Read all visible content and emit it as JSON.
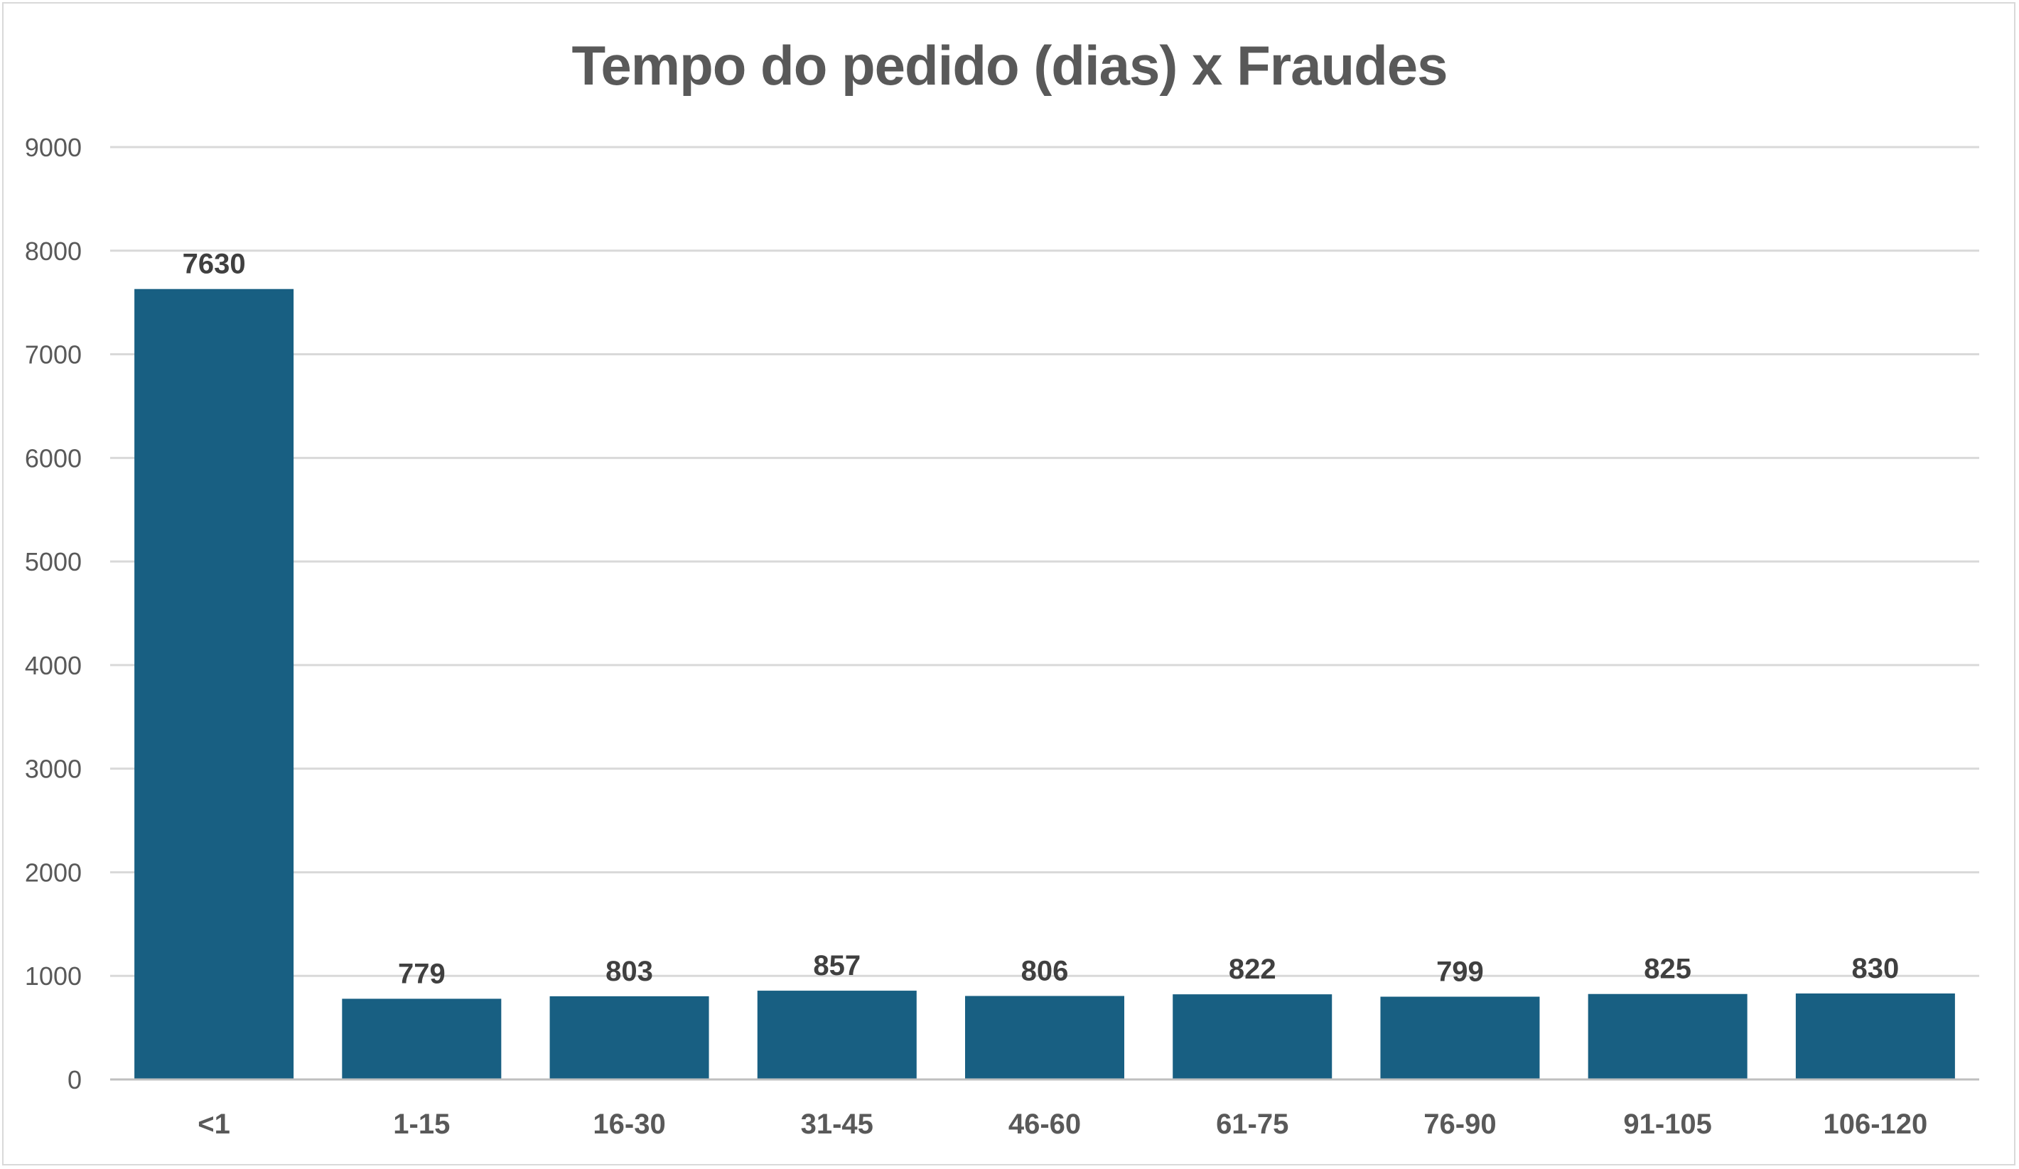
{
  "chart_data": {
    "type": "bar",
    "title": "Tempo do pedido (dias) x Fraudes",
    "categories": [
      "<1",
      "1-15",
      "16-30",
      "31-45",
      "46-60",
      "61-75",
      "76-90",
      "91-105",
      "106-120"
    ],
    "values": [
      7630,
      779,
      803,
      857,
      806,
      822,
      799,
      825,
      830
    ],
    "yticks": [
      "0",
      "1000",
      "2000",
      "3000",
      "4000",
      "5000",
      "6000",
      "7000",
      "8000",
      "9000"
    ],
    "ylim": [
      0,
      9000
    ],
    "grid": true,
    "legend": "none",
    "bar_color": "#185f82",
    "grid_color": "#d9d9d9",
    "axis_color": "#bfbfbf",
    "text_color": "#595959",
    "label_color": "#404040"
  }
}
